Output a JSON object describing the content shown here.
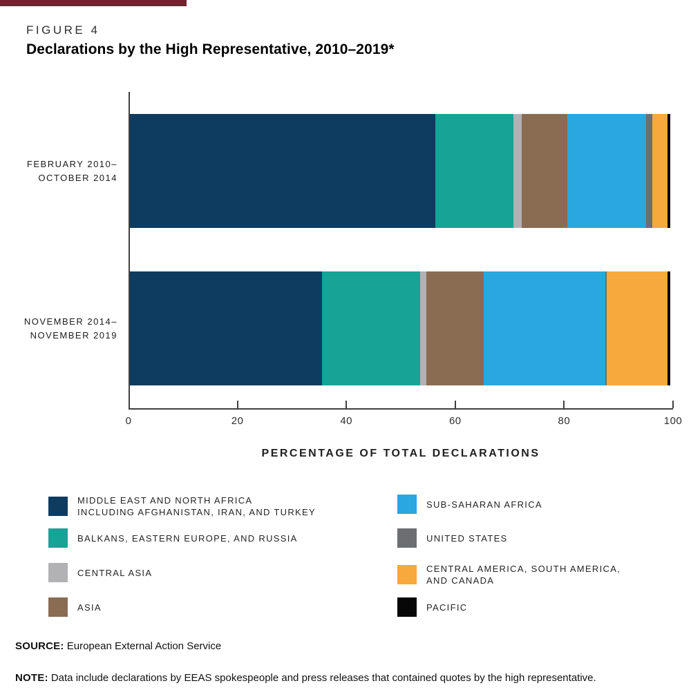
{
  "figure_label": "FIGURE 4",
  "title": "Declarations by the High Representative, 2010–2019*",
  "brand_rule_color": "#6f2430",
  "axis": {
    "xlabel": "PERCENTAGE OF TOTAL DECLARATIONS",
    "tick_values": [
      0,
      20,
      40,
      60,
      80,
      100
    ],
    "line_color": "#3f3f41"
  },
  "chart_data": {
    "type": "bar",
    "orientation": "horizontal",
    "stacked": true,
    "title": "Declarations by the High Representative, 2010–2019*",
    "xlabel": "PERCENTAGE OF TOTAL DECLARATIONS",
    "xlim": [
      0,
      100
    ],
    "x_ticks": [
      0,
      20,
      40,
      60,
      80,
      100
    ],
    "grid": false,
    "categories": [
      "FEBRUARY 2010–OCTOBER 2014",
      "NOVEMBER 2014–NOVEMBER 2019"
    ],
    "categories_display": [
      {
        "lines": [
          "FEBRUARY 2010–",
          "OCTOBER 2014"
        ]
      },
      {
        "lines": [
          "NOVEMBER 2014–",
          "NOVEMBER 2019"
        ]
      }
    ],
    "unit": "percent of total declarations",
    "series": [
      {
        "name": "MIDDLE EAST AND NORTH AFRICA INCLUDING AFGHANISTAN, IRAN, AND TURKEY",
        "color": "#0e3c60",
        "values": [
          56.5,
          35.5
        ]
      },
      {
        "name": "BALKANS, EASTERN EUROPE, AND RUSSIA",
        "color": "#17a396",
        "values": [
          14.5,
          18.2
        ]
      },
      {
        "name": "CENTRAL ASIA",
        "color": "#b2b1b3",
        "values": [
          1.5,
          1.1
        ]
      },
      {
        "name": "ASIA",
        "color": "#8a6c52",
        "values": [
          8.5,
          10.7
        ]
      },
      {
        "name": "SUB-SAHARAN AFRICA",
        "color": "#29a7df",
        "values": [
          14.5,
          22.5
        ]
      },
      {
        "name": "UNITED STATES",
        "color": "#6d6e71",
        "values": [
          1.2,
          0.2
        ]
      },
      {
        "name": "CENTRAL AMERICA, SOUTH AMERICA, AND CANADA",
        "color": "#f8a93d",
        "values": [
          2.8,
          11.3
        ]
      },
      {
        "name": "PACIFIC",
        "color": "#070707",
        "values": [
          0.5,
          0.5
        ]
      }
    ]
  },
  "legend": {
    "columns": [
      [
        {
          "lines": [
            "MIDDLE EAST AND NORTH AFRICA",
            "INCLUDING AFGHANISTAN, IRAN, AND TURKEY"
          ],
          "color": "#0e3c60"
        },
        {
          "lines": [
            "BALKANS, EASTERN EUROPE, AND RUSSIA"
          ],
          "color": "#17a396"
        },
        {
          "lines": [
            "CENTRAL ASIA"
          ],
          "color": "#b2b1b3"
        },
        {
          "lines": [
            "ASIA"
          ],
          "color": "#8a6c52"
        }
      ],
      [
        {
          "lines": [
            "SUB-SAHARAN AFRICA"
          ],
          "color": "#29a7df"
        },
        {
          "lines": [
            "UNITED STATES"
          ],
          "color": "#6d6e71"
        },
        {
          "lines": [
            "CENTRAL AMERICA, SOUTH AMERICA,",
            "AND CANADA"
          ],
          "color": "#f8a93d"
        },
        {
          "lines": [
            "PACIFIC"
          ],
          "color": "#070707"
        }
      ]
    ]
  },
  "source": {
    "label": "SOURCE:",
    "text": " European External Action Service"
  },
  "note": {
    "label": "NOTE:",
    "text": " Data include declarations by EEAS spokespeople and press releases that contained quotes by the high representative."
  }
}
